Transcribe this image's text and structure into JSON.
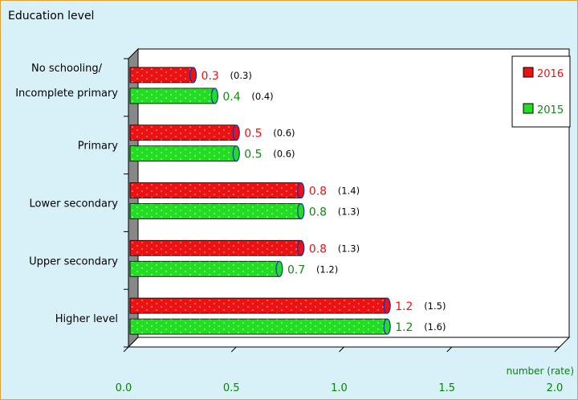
{
  "chart_data": {
    "type": "bar",
    "orientation": "horizontal",
    "title": "Education level",
    "categories": [
      "No schooling/|Incomplete primary",
      "Primary",
      "Lower secondary",
      "Upper secondary",
      "Higher level"
    ],
    "series": [
      {
        "name": "2016",
        "color": "#ee1111",
        "values": [
          0.3,
          0.5,
          0.8,
          0.8,
          1.2
        ],
        "value_labels": [
          "0.3",
          "0.5",
          "0.8",
          "0.8",
          "1.2"
        ],
        "rate_labels": [
          "(0.3)",
          "(0.6)",
          "(1.4)",
          "(1.3)",
          "(1.5)"
        ]
      },
      {
        "name": "2015",
        "color": "#22dd22",
        "values": [
          0.4,
          0.5,
          0.8,
          0.7,
          1.2
        ],
        "value_labels": [
          "0.4",
          "0.5",
          "0.8",
          "0.7",
          "1.2"
        ],
        "rate_labels": [
          "(0.4)",
          "(0.6)",
          "(1.3)",
          "(1.2)",
          "(1.6)"
        ]
      }
    ],
    "xlim": [
      0,
      2.0
    ],
    "xticks": [
      "0.0",
      "0.5",
      "1.0",
      "1.5",
      "2.0"
    ],
    "xlabel": "number (rate)",
    "legend_position": "top-right",
    "colors": {
      "axis_text": "#008800",
      "label_2016": "#ee1111",
      "label_2015": "#118811"
    }
  }
}
